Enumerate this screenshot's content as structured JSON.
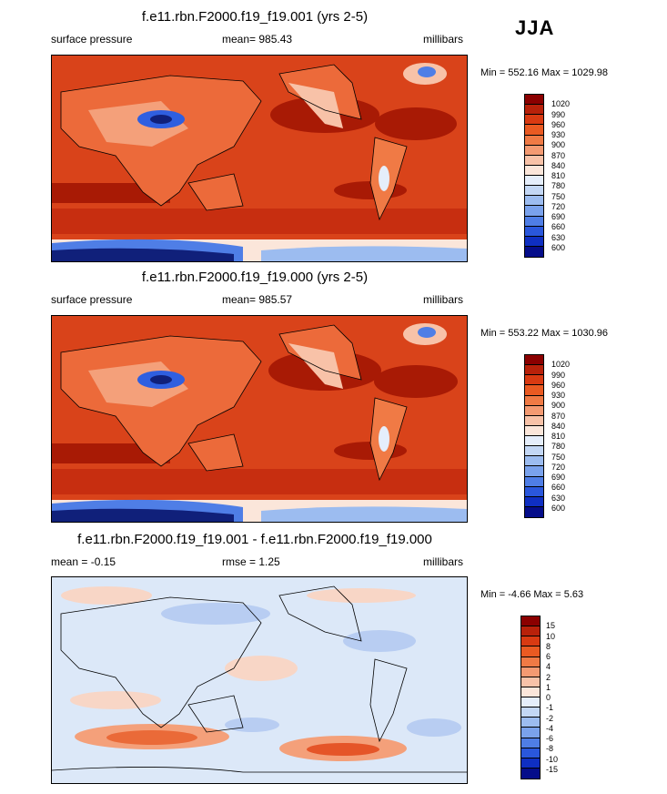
{
  "season": "JJA",
  "panels": [
    {
      "title": "f.e11.rbn.F2000.f19_f19.001 (yrs 2-5)",
      "left_label": "surface pressure",
      "center_label": "mean= 985.43",
      "right_label": "millibars",
      "minmax": "Min = 552.16 Max = 1029.98",
      "kind": "abs"
    },
    {
      "title": "f.e11.rbn.F2000.f19_f19.000 (yrs 2-5)",
      "left_label": "surface pressure",
      "center_label": "mean= 985.57",
      "right_label": "millibars",
      "minmax": "Min = 553.22 Max = 1030.96",
      "kind": "abs"
    },
    {
      "title": "f.e11.rbn.F2000.f19_f19.001 - f.e11.rbn.F2000.f19_f19.000",
      "left_label": "mean =  -0.15",
      "center_label": "rmse =   1.25",
      "right_label": "millibars",
      "minmax": "Min =  -4.66 Max =   5.63",
      "kind": "diff"
    }
  ],
  "colorbars": {
    "abs": {
      "labels": [
        "1020",
        "990",
        "960",
        "930",
        "900",
        "870",
        "840",
        "810",
        "780",
        "750",
        "720",
        "690",
        "660",
        "630",
        "600"
      ],
      "colors": [
        "#8b0000",
        "#b8210a",
        "#d93a12",
        "#ea5a22",
        "#f07a45",
        "#f49a72",
        "#f8c2a8",
        "#fbe6da",
        "#e5eefb",
        "#c3d7f5",
        "#9cbcf0",
        "#7aa2ec",
        "#4f7ee6",
        "#2a57dc",
        "#0f2fc2",
        "#050d8a"
      ]
    },
    "diff": {
      "labels": [
        "15",
        "10",
        "8",
        "6",
        "4",
        "2",
        "1",
        "0",
        "-1",
        "-2",
        "-4",
        "-6",
        "-8",
        "-10",
        "-15"
      ],
      "colors": [
        "#8b0000",
        "#b8210a",
        "#d93a12",
        "#ea5a22",
        "#f07a45",
        "#f49a72",
        "#f8c2a8",
        "#fbe6da",
        "#e5eefb",
        "#c3d7f5",
        "#9cbcf0",
        "#7aa2ec",
        "#4f7ee6",
        "#2a57dc",
        "#0f2fc2",
        "#050d8a"
      ]
    }
  }
}
